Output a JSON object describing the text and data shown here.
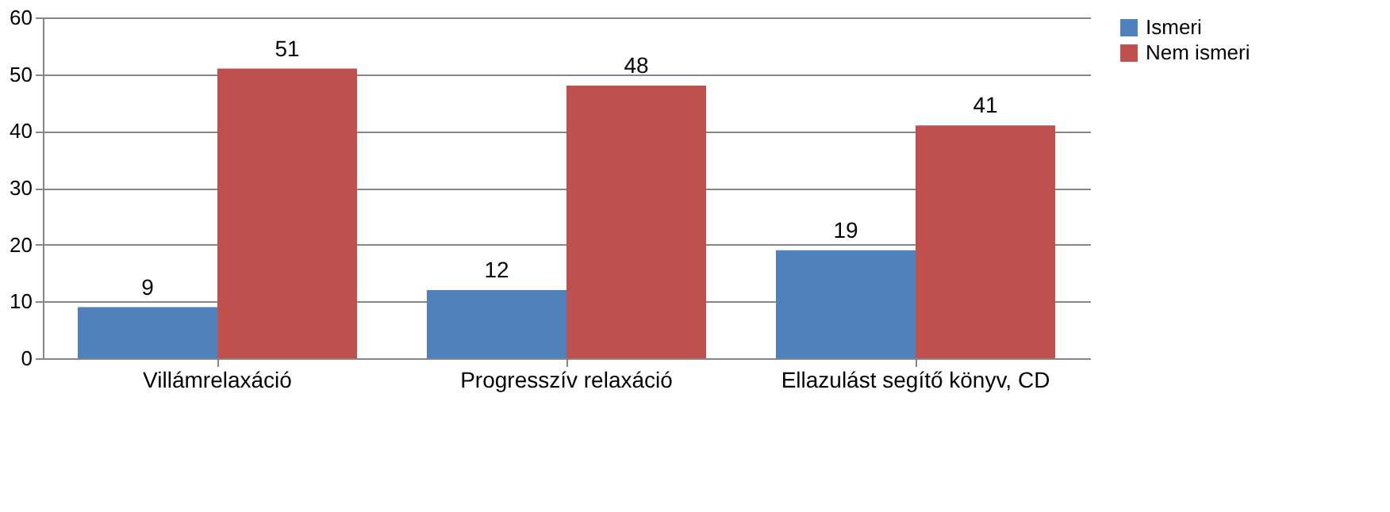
{
  "chart_data": {
    "type": "bar",
    "categories": [
      "Villámrelaxáció",
      "Progresszív relaxáció",
      "Ellazulást segítő könyv, CD"
    ],
    "series": [
      {
        "name": "Ismeri",
        "color": "#4f81bd",
        "values": [
          9,
          12,
          19
        ]
      },
      {
        "name": "Nem ismeri",
        "color": "#c0504d",
        "values": [
          51,
          48,
          41
        ]
      }
    ],
    "ylim": [
      0,
      60
    ],
    "yticks": [
      0,
      10,
      20,
      30,
      40,
      50,
      60
    ],
    "grid": "y",
    "legend": "right",
    "data_labels": true
  }
}
